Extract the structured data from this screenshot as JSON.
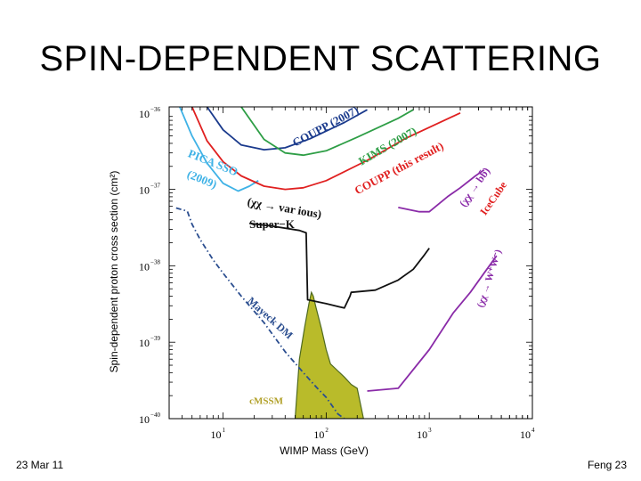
{
  "slide": {
    "title": "SPIN-DEPENDENT SCATTERING",
    "footer_left": "23 Mar 11",
    "footer_right": "Feng 23"
  },
  "chart_data": {
    "type": "line",
    "xlabel": "WIMP Mass (GeV)",
    "ylabel": "Spin-dependent proton cross section (cm²)",
    "x_scale": "log",
    "y_scale": "log",
    "xlim": [
      3,
      10000
    ],
    "ylim": [
      1e-40,
      1.2e-36
    ],
    "x_ticks": [
      {
        "base": "10",
        "exp": "1",
        "value": 10
      },
      {
        "base": "10",
        "exp": "2",
        "value": 100
      },
      {
        "base": "10",
        "exp": "3",
        "value": 1000
      },
      {
        "base": "10",
        "exp": "4",
        "value": 10000
      }
    ],
    "y_ticks": [
      {
        "base": "10",
        "exp": "−36",
        "value": 1e-36
      },
      {
        "base": "10",
        "exp": "−37",
        "value": 1e-37
      },
      {
        "base": "10",
        "exp": "−38",
        "value": 1e-38
      },
      {
        "base": "10",
        "exp": "−39",
        "value": 1e-39
      },
      {
        "base": "10",
        "exp": "−40",
        "value": 1e-40
      }
    ],
    "series": [
      {
        "name": "PICASSO (2009)",
        "color": "#3fb2e6",
        "style": "solid",
        "points": [
          [
            3.8,
            1.2e-36
          ],
          [
            5,
            5e-37
          ],
          [
            7,
            2.2e-37
          ],
          [
            10,
            1.2e-37
          ],
          [
            14,
            9.5e-38
          ],
          [
            18,
            1.1e-37
          ],
          [
            22,
            1.3e-37
          ]
        ]
      },
      {
        "name": "COUPP (2007)",
        "color": "#1a3a8c",
        "style": "solid",
        "points": [
          [
            7,
            1.2e-36
          ],
          [
            10,
            6e-37
          ],
          [
            15,
            3.8e-37
          ],
          [
            25,
            3.3e-37
          ],
          [
            40,
            3.5e-37
          ],
          [
            70,
            4.6e-37
          ],
          [
            150,
            7.5e-37
          ],
          [
            250,
            1.1e-36
          ]
        ]
      },
      {
        "name": "KIMS (2007)",
        "color": "#2e9e46",
        "style": "solid",
        "points": [
          [
            15,
            1.2e-36
          ],
          [
            25,
            4.5e-37
          ],
          [
            40,
            3e-37
          ],
          [
            60,
            2.8e-37
          ],
          [
            100,
            3.2e-37
          ],
          [
            200,
            4.8e-37
          ],
          [
            500,
            8.5e-37
          ],
          [
            700,
            1.1e-36
          ]
        ]
      },
      {
        "name": "COUPP (this result)",
        "color": "#e02020",
        "style": "solid",
        "points": [
          [
            5,
            1.2e-36
          ],
          [
            7,
            4.3e-37
          ],
          [
            10,
            2.3e-37
          ],
          [
            15,
            1.5e-37
          ],
          [
            25,
            1.1e-37
          ],
          [
            40,
            1e-37
          ],
          [
            60,
            1.05e-37
          ],
          [
            100,
            1.3e-37
          ],
          [
            250,
            2.4e-37
          ],
          [
            600,
            4.7e-37
          ],
          [
            2000,
            1e-36
          ]
        ]
      },
      {
        "name": "Super-K",
        "color": "#111111",
        "style": "solid",
        "points": [
          [
            18,
            3.6e-38
          ],
          [
            30,
            3.3e-38
          ],
          [
            55,
            2.9e-38
          ],
          [
            64,
            2.7e-38
          ],
          [
            66,
            3.6e-39
          ],
          [
            100,
            3.2e-39
          ],
          [
            150,
            2.8e-39
          ],
          [
            170,
            4e-39
          ],
          [
            175,
            4.5e-39
          ],
          [
            300,
            4.8e-39
          ],
          [
            500,
            6.5e-39
          ],
          [
            700,
            9e-39
          ],
          [
            900,
            1.4e-38
          ],
          [
            1000,
            1.7e-38
          ]
        ]
      },
      {
        "name": "IceCube (χχ → bb̄)",
        "color": "#8a2ba8",
        "style": "solid",
        "points": [
          [
            500,
            5.8e-38
          ],
          [
            800,
            5.1e-38
          ],
          [
            1000,
            5.1e-38
          ],
          [
            1500,
            8e-38
          ],
          [
            2000,
            1.05e-37
          ],
          [
            2800,
            1.5e-37
          ],
          [
            3400,
            1.8e-37
          ]
        ]
      },
      {
        "name": "IceCube (χχ → W⁺W⁻)",
        "color": "#8a2ba8",
        "style": "solid",
        "points": [
          [
            250,
            2.3e-40
          ],
          [
            500,
            2.5e-40
          ],
          [
            1000,
            8e-40
          ],
          [
            1700,
            2.4e-39
          ],
          [
            2500,
            4.5e-39
          ],
          [
            3400,
            8e-39
          ],
          [
            4500,
            1.35e-38
          ]
        ]
      },
      {
        "name": "Mayeck DM",
        "color": "#2a4d8f",
        "style": "dash-dot",
        "points": [
          [
            3.5,
            5.7e-38
          ],
          [
            4.5,
            5.2e-38
          ],
          [
            5,
            3.5e-38
          ],
          [
            6,
            2.2e-38
          ],
          [
            8,
            1.2e-38
          ],
          [
            10,
            8e-39
          ],
          [
            15,
            4e-39
          ],
          [
            25,
            1.8e-39
          ],
          [
            40,
            7.5e-40
          ],
          [
            60,
            4e-40
          ],
          [
            80,
            2.6e-40
          ],
          [
            100,
            1.9e-40
          ],
          [
            130,
            1.15e-40
          ],
          [
            150,
            1e-40
          ]
        ]
      }
    ],
    "regions": [
      {
        "name": "cMSSM",
        "color": "#b9bb2a",
        "edge": "#4f6a1f",
        "points": [
          [
            50,
            1e-40
          ],
          [
            55,
            6e-40
          ],
          [
            62,
            1.6e-39
          ],
          [
            68,
            3.2e-39
          ],
          [
            72,
            4.5e-39
          ],
          [
            75,
            4e-39
          ],
          [
            80,
            2.8e-39
          ],
          [
            90,
            1.5e-39
          ],
          [
            100,
            8e-40
          ],
          [
            110,
            5.2e-40
          ],
          [
            130,
            4.2e-40
          ],
          [
            150,
            3.5e-40
          ],
          [
            175,
            2.8e-40
          ],
          [
            200,
            2.5e-40
          ],
          [
            230,
            1e-40
          ]
        ]
      }
    ],
    "annotations": [
      {
        "text": "COUPP (2007)",
        "color": "#1a3a8c",
        "x": 50,
        "y": 3.6e-37,
        "rotate": -28,
        "size": 13
      },
      {
        "text": "KIMS (2007)",
        "color": "#2e9e46",
        "x": 220,
        "y": 2.05e-37,
        "rotate": -30,
        "size": 13
      },
      {
        "text": "COUPP (this result)",
        "color": "#e02020",
        "x": 200,
        "y": 8.5e-38,
        "rotate": -28,
        "size": 13
      },
      {
        "text": "PICA SSO",
        "color": "#3fb2e6",
        "x": 4.5,
        "y": 2.7e-37,
        "rotate": 22,
        "size": 13
      },
      {
        "text": "(2009)",
        "color": "#3fb2e6",
        "x": 4.4,
        "y": 1.45e-37,
        "rotate": 22,
        "size": 13
      },
      {
        "text": "(χχ → var ious)",
        "color": "#111111",
        "x": 17,
        "y": 6.2e-38,
        "rotate": 10,
        "size": 13
      },
      {
        "text": "Super−K",
        "color": "#111111",
        "x": 18,
        "y": 3.1e-38,
        "rotate": 0,
        "size": 13
      },
      {
        "text": "(χχ → bb̄)",
        "color": "#8a2ba8",
        "x": 2200,
        "y": 5.8e-38,
        "rotate": -55,
        "size": 12
      },
      {
        "text": "IceCube",
        "color": "#e02020",
        "x": 3500,
        "y": 4.5e-38,
        "rotate": -55,
        "size": 12
      },
      {
        "text": "(χχ → W⁺W⁻)",
        "color": "#8a2ba8",
        "x": 3300,
        "y": 2.8e-39,
        "rotate": -72,
        "size": 11
      },
      {
        "text": "Mayeck DM",
        "color": "#2a4d8f",
        "x": 17,
        "y": 3.4e-39,
        "rotate": 42,
        "size": 12
      },
      {
        "text": "cMSSM",
        "color": "#b2a12a",
        "x": 18,
        "y": 1.55e-40,
        "rotate": 0,
        "size": 11
      }
    ]
  }
}
